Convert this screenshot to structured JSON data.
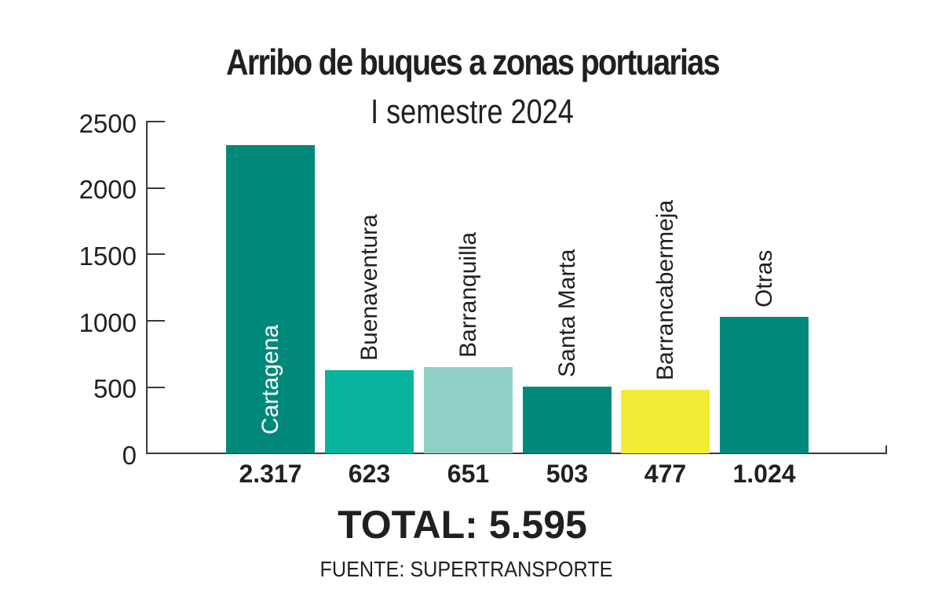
{
  "header": {
    "title": "Arribo de buques a  zonas portuarias",
    "subtitle": "I semestre 2024"
  },
  "y_ticks": [
    "2500",
    "2000",
    "1500",
    "1000",
    "500",
    "0"
  ],
  "bars": [
    {
      "label": "Cartagena",
      "value_label": "2.317",
      "value": 2317,
      "color": "#00897a"
    },
    {
      "label": "Buenaventura",
      "value_label": "623",
      "value": 623,
      "color": "#08b39e"
    },
    {
      "label": "Barranquilla",
      "value_label": "651",
      "value": 651,
      "color": "#8ed0c6"
    },
    {
      "label": "Santa Marta",
      "value_label": "503",
      "value": 503,
      "color": "#00897a"
    },
    {
      "label": "Barrancabermeja",
      "value_label": "477",
      "value": 477,
      "color": "#f3ec34"
    },
    {
      "label": "Otras",
      "value_label": "1.024",
      "value": 1024,
      "color": "#00897a"
    }
  ],
  "footer": {
    "total": "TOTAL: 5.595",
    "source": "FUENTE: SUPERTRANSPORTE"
  },
  "chart_data": {
    "type": "bar",
    "title": "Arribo de buques a zonas portuarias",
    "subtitle": "I semestre 2024",
    "categories": [
      "Cartagena",
      "Buenaventura",
      "Barranquilla",
      "Santa Marta",
      "Barrancabermeja",
      "Otras"
    ],
    "values": [
      2317,
      623,
      651,
      503,
      477,
      1024
    ],
    "value_labels": [
      "2.317",
      "623",
      "651",
      "503",
      "477",
      "1.024"
    ],
    "colors": [
      "#00897a",
      "#08b39e",
      "#8ed0c6",
      "#00897a",
      "#f3ec34",
      "#00897a"
    ],
    "xlabel": "",
    "ylabel": "",
    "ylim": [
      0,
      2500
    ],
    "yticks": [
      0,
      500,
      1000,
      1500,
      2000,
      2500
    ],
    "grid": false,
    "legend": "none",
    "annotations": [
      "TOTAL: 5.595",
      "FUENTE: SUPERTRANSPORTE"
    ]
  }
}
